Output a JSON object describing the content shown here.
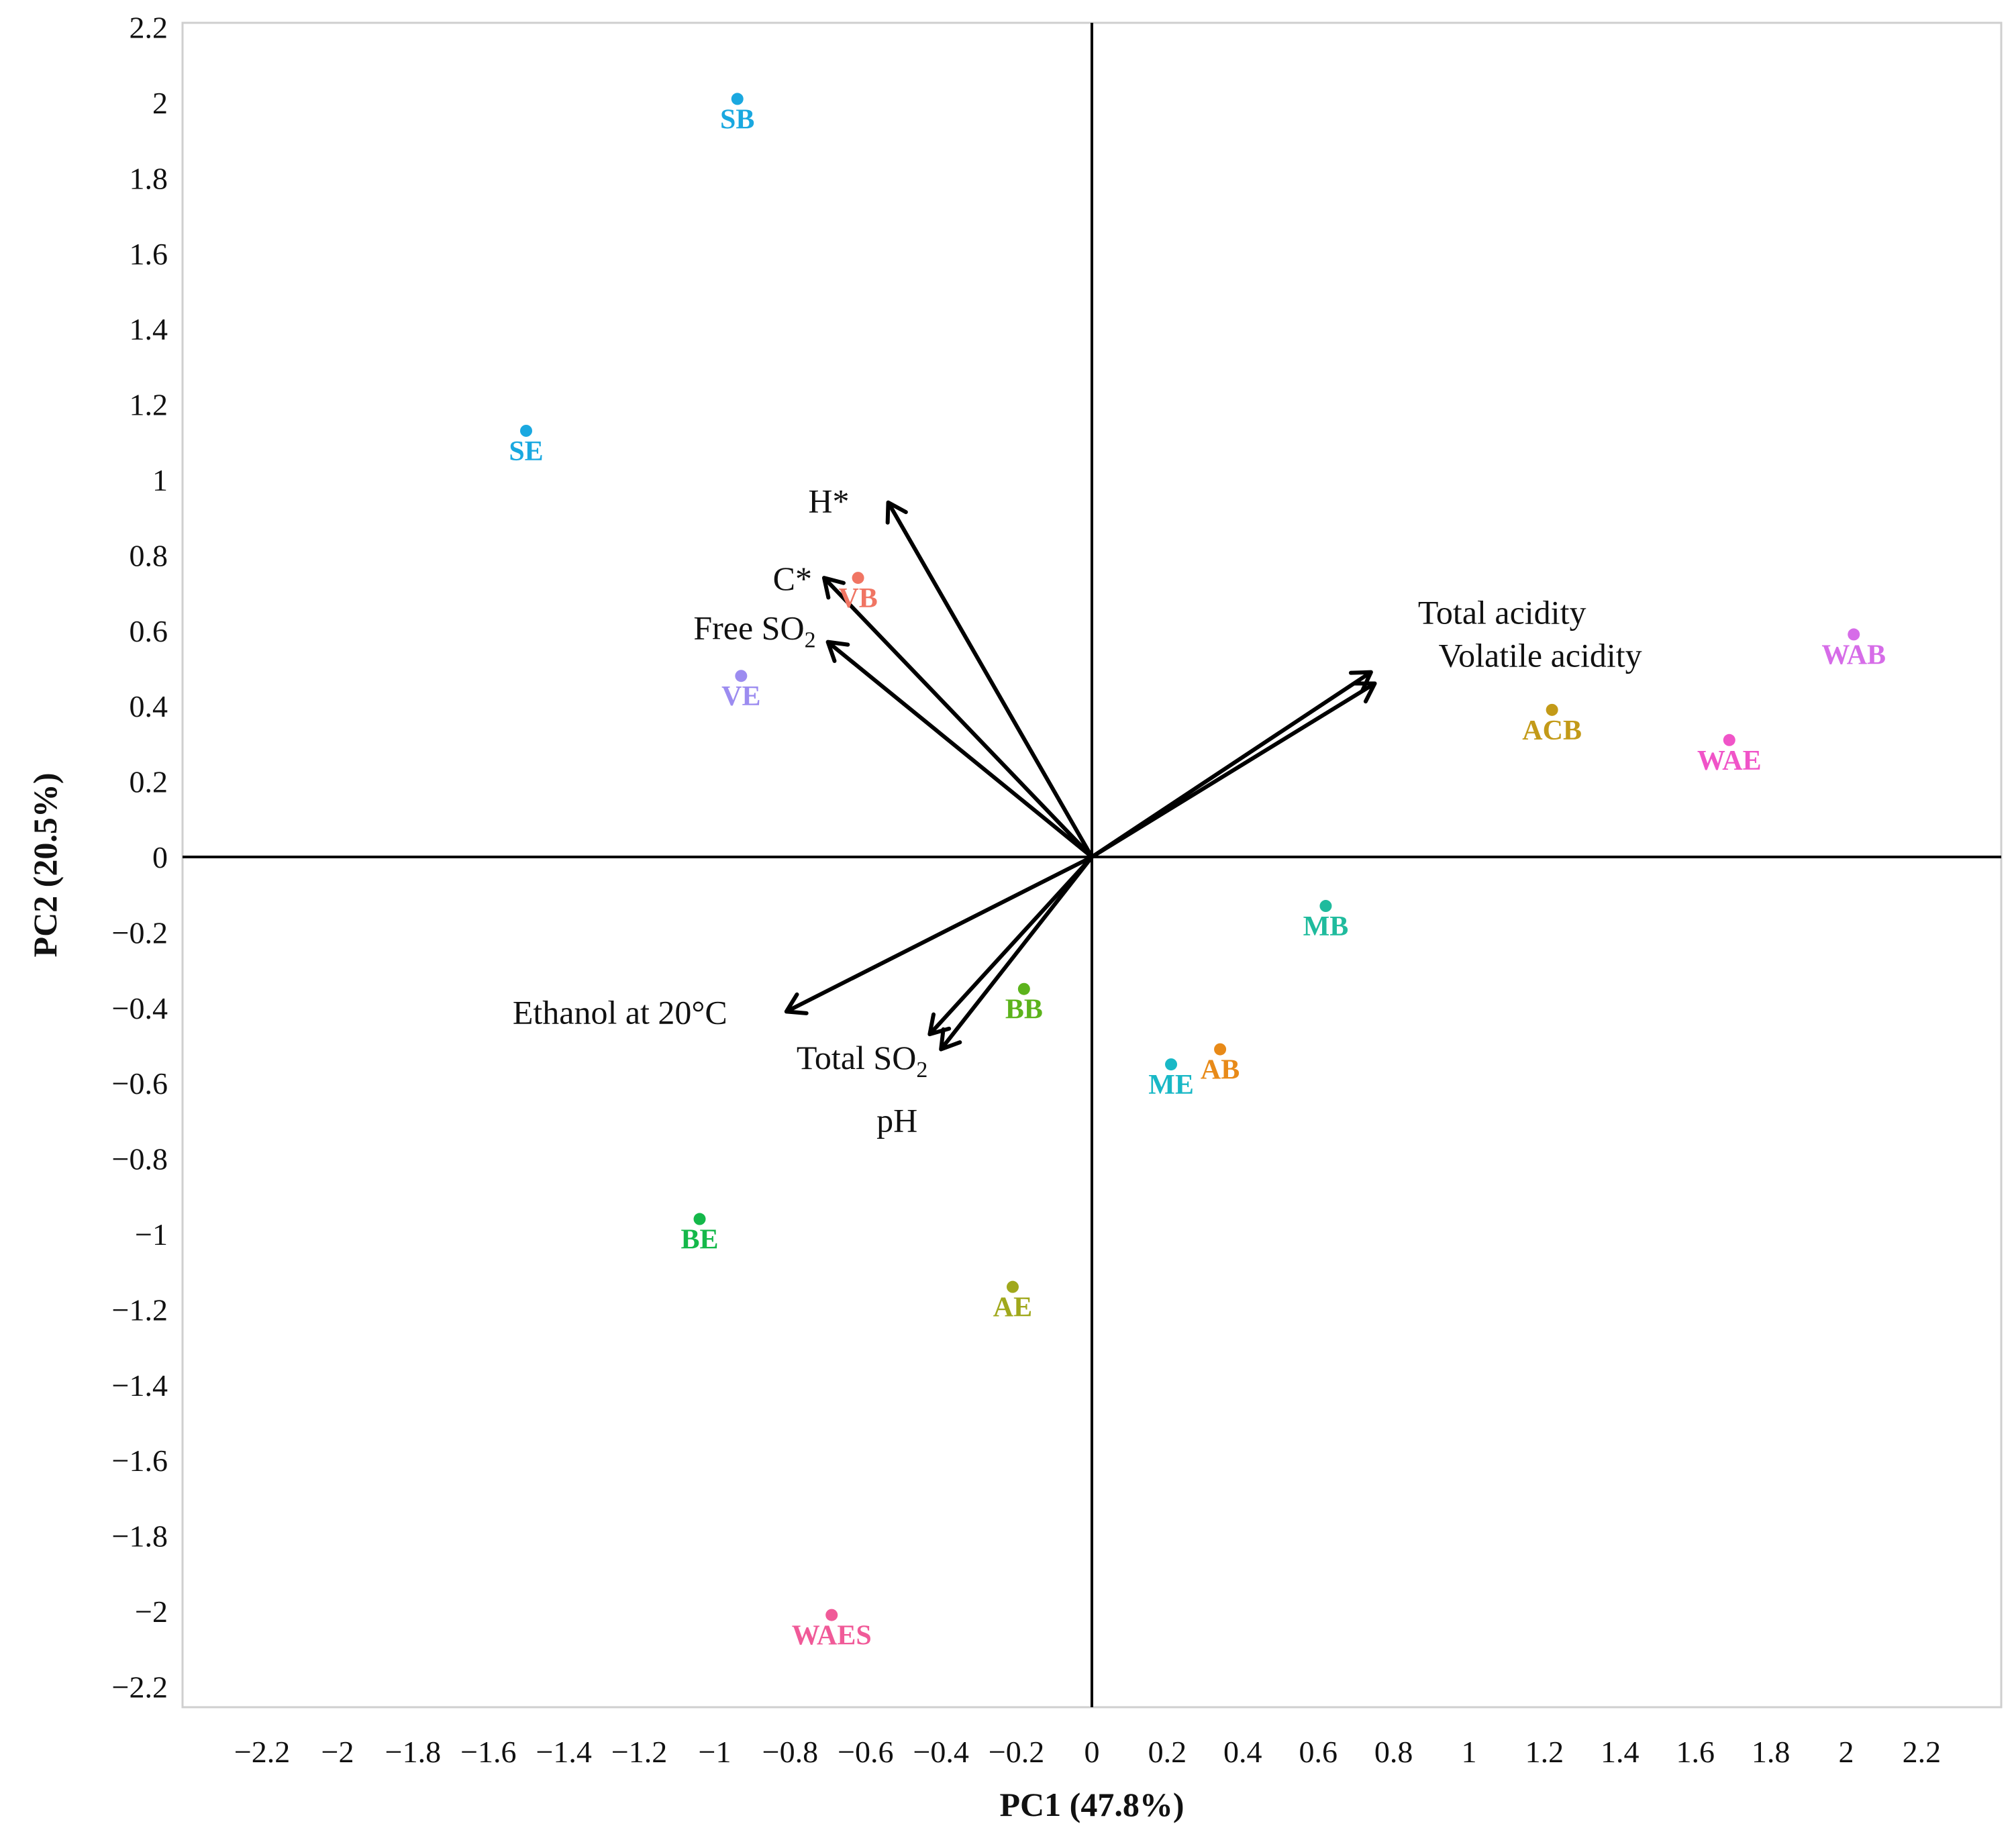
{
  "chart_data": {
    "type": "scatter",
    "xlabel": "PC1 (47.8%)",
    "ylabel": "PC2 (20.5%)",
    "xlim": [
      -2.4,
      2.4
    ],
    "ylim": [
      -2.25,
      2.22
    ],
    "x_ticks": [
      -2.2,
      -2,
      -1.8,
      -1.6,
      -1.4,
      -1.2,
      -1,
      -0.8,
      -0.6,
      -0.4,
      -0.2,
      0,
      0.2,
      0.4,
      0.6,
      0.8,
      1,
      1.2,
      1.4,
      1.6,
      1.8,
      2,
      2.2
    ],
    "y_ticks": [
      2.2,
      2,
      1.8,
      1.6,
      1.4,
      1.2,
      1,
      0.8,
      0.6,
      0.4,
      0.2,
      0,
      -0.2,
      -0.4,
      -0.6,
      -0.8,
      -1,
      -1.2,
      -1.4,
      -1.6,
      -1.8,
      -2,
      -2.2
    ],
    "grid": false,
    "points": [
      {
        "label": "SB",
        "x": -0.94,
        "y": 2.01,
        "color": "#1aa8e0"
      },
      {
        "label": "SE",
        "x": -1.5,
        "y": 1.13,
        "color": "#1aa8e0"
      },
      {
        "label": "VB",
        "x": -0.62,
        "y": 0.74,
        "color": "#f07563"
      },
      {
        "label": "VE",
        "x": -0.93,
        "y": 0.48,
        "color": "#9c8cf0"
      },
      {
        "label": "ACB",
        "x": 1.22,
        "y": 0.39,
        "color": "#c39a18"
      },
      {
        "label": "WAB",
        "x": 2.02,
        "y": 0.59,
        "color": "#d66ce8"
      },
      {
        "label": "WAE",
        "x": 1.69,
        "y": 0.31,
        "color": "#f054c8"
      },
      {
        "label": "MB",
        "x": 0.62,
        "y": -0.13,
        "color": "#1fbb9d"
      },
      {
        "label": "BB",
        "x": -0.18,
        "y": -0.35,
        "color": "#5cb31c"
      },
      {
        "label": "AB",
        "x": 0.34,
        "y": -0.51,
        "color": "#e88a18"
      },
      {
        "label": "ME",
        "x": 0.21,
        "y": -0.55,
        "color": "#19b8c6"
      },
      {
        "label": "BE",
        "x": -1.04,
        "y": -0.96,
        "color": "#14b84a"
      },
      {
        "label": "AE",
        "x": -0.21,
        "y": -1.14,
        "color": "#a0a81c"
      },
      {
        "label": "WAES",
        "x": -0.69,
        "y": -2.01,
        "color": "#f05a98"
      }
    ],
    "vectors": [
      {
        "label": "H*",
        "x": -0.54,
        "y": 0.94
      },
      {
        "label": "C*",
        "x": -0.71,
        "y": 0.74
      },
      {
        "label": "Free SO",
        "subscript": "2",
        "x": -0.7,
        "y": 0.57
      },
      {
        "label": "Total acidity",
        "x": 0.74,
        "y": 0.49
      },
      {
        "label": "Volatile acidity",
        "x": 0.75,
        "y": 0.46
      },
      {
        "label": "Ethanol at 20°C",
        "x": -0.81,
        "y": -0.41
      },
      {
        "label": "Total SO",
        "subscript": "2",
        "x": -0.43,
        "y": -0.47
      },
      {
        "label": "pH",
        "x": -0.4,
        "y": -0.51
      }
    ]
  }
}
